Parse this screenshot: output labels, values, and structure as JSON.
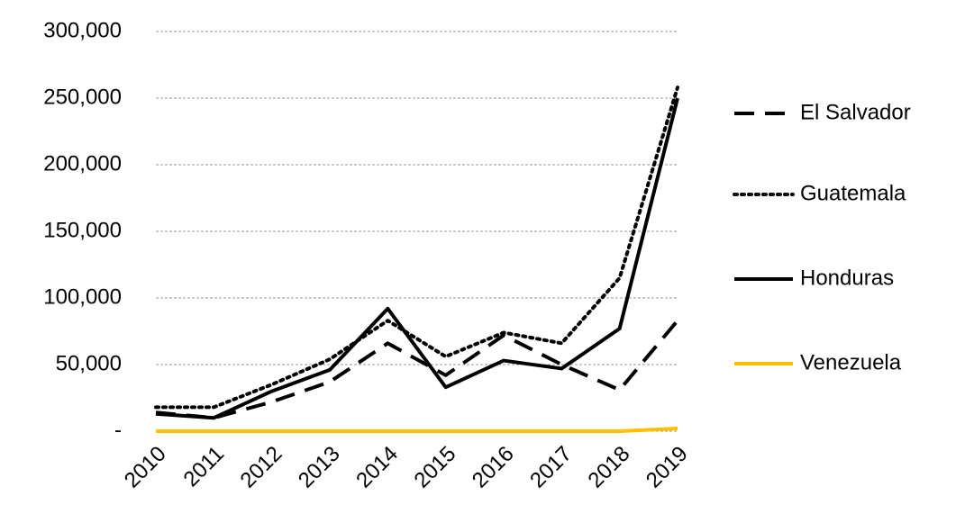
{
  "chart_data": {
    "type": "line",
    "categories": [
      "2010",
      "2011",
      "2012",
      "2013",
      "2014",
      "2015",
      "2016",
      "2017",
      "2018",
      "2019"
    ],
    "series": [
      {
        "name": "El Salvador",
        "color": "#000000",
        "dash": "dashed",
        "values": [
          14000,
          10000,
          22000,
          37000,
          66000,
          42000,
          72000,
          50000,
          31000,
          83000
        ]
      },
      {
        "name": "Guatemala",
        "color": "#000000",
        "dash": "dotted",
        "values": [
          18000,
          18000,
          35000,
          54000,
          83000,
          56000,
          74000,
          66000,
          115000,
          258000
        ]
      },
      {
        "name": "Honduras",
        "color": "#000000",
        "dash": "solid",
        "values": [
          13000,
          10000,
          30000,
          46000,
          92000,
          33000,
          53000,
          47000,
          77000,
          250000
        ]
      },
      {
        "name": "Venezuela",
        "color": "#ffc000",
        "dash": "solid",
        "values": [
          0,
          0,
          0,
          0,
          0,
          0,
          0,
          0,
          0,
          2000
        ]
      }
    ],
    "ylim": [
      0,
      300000
    ],
    "yticks": [
      {
        "value": 0,
        "label": "-"
      },
      {
        "value": 50000,
        "label": "50,000"
      },
      {
        "value": 100000,
        "label": "100,000"
      },
      {
        "value": 150000,
        "label": "150,000"
      },
      {
        "value": 200000,
        "label": "200,000"
      },
      {
        "value": 250000,
        "label": "250,000"
      },
      {
        "value": 300000,
        "label": "300,000"
      }
    ],
    "grid": true,
    "legend": "right"
  }
}
